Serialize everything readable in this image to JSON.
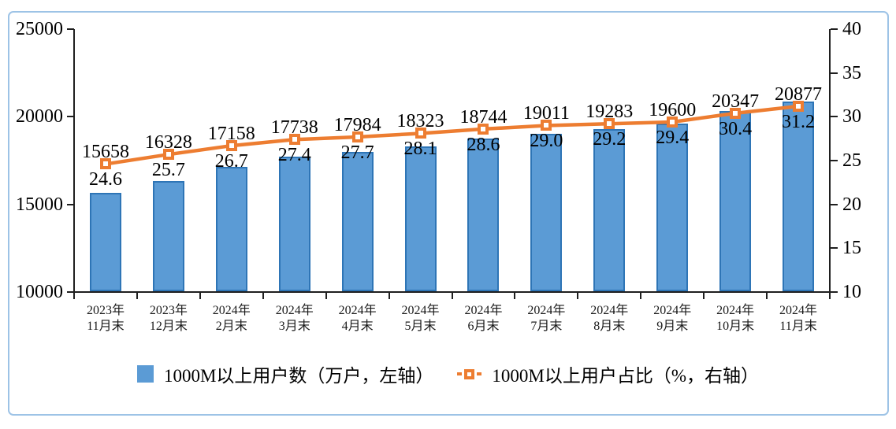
{
  "figure": {
    "frame_border_color": "#9DC3E6",
    "background_color": "#FFFFFF",
    "axis_color": "#1F1F1F",
    "text_color": "#000000"
  },
  "chart_data": {
    "type": "bar+line",
    "title": "",
    "grid": false,
    "legend_position": "bottom",
    "categories": [
      {
        "l1": "2023年",
        "l2": "11月末"
      },
      {
        "l1": "2023年",
        "l2": "12月末"
      },
      {
        "l1": "2024年",
        "l2": "2月末"
      },
      {
        "l1": "2024年",
        "l2": "3月末"
      },
      {
        "l1": "2024年",
        "l2": "4月末"
      },
      {
        "l1": "2024年",
        "l2": "5月末"
      },
      {
        "l1": "2024年",
        "l2": "6月末"
      },
      {
        "l1": "2024年",
        "l2": "7月末"
      },
      {
        "l1": "2024年",
        "l2": "8月末"
      },
      {
        "l1": "2024年",
        "l2": "9月末"
      },
      {
        "l1": "2024年",
        "l2": "10月末"
      },
      {
        "l1": "2024年",
        "l2": "11月末"
      }
    ],
    "series": [
      {
        "name": "1000M以上用户数（万户，左轴）",
        "type": "bar",
        "axis": "left",
        "color": "#5B9BD5",
        "border_color": "#2E75B6",
        "values": [
          15658,
          16328,
          17158,
          17738,
          17984,
          18323,
          18744,
          19011,
          19283,
          19600,
          20347,
          20877
        ]
      },
      {
        "name": "1000M以上用户占比（%，右轴）",
        "type": "line",
        "axis": "right",
        "color": "#ED7D31",
        "marker": "square",
        "value_decimals": 1,
        "values": [
          24.6,
          25.7,
          26.7,
          27.4,
          27.7,
          28.1,
          28.6,
          29.0,
          29.2,
          29.4,
          30.4,
          31.2
        ]
      }
    ],
    "left_axis": {
      "min": 10000,
      "max": 25000,
      "step": 5000,
      "tick_labels": [
        "25000",
        "20000",
        "15000",
        "10000"
      ]
    },
    "right_axis": {
      "min": 10,
      "max": 40,
      "step": 5,
      "tick_labels": [
        "40",
        "35",
        "30",
        "25",
        "20",
        "15",
        "10"
      ]
    }
  }
}
